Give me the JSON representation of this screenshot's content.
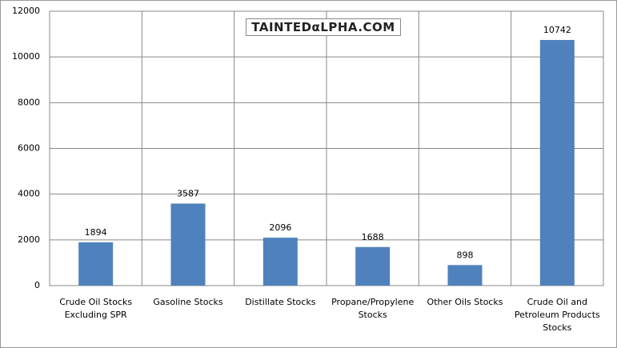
{
  "chart_data": {
    "type": "bar",
    "watermark": "TAINTEDαLPHA.COM",
    "categories": [
      "Crude Oil Stocks\nExcluding SPR",
      "Gasoline Stocks",
      "Distillate  Stocks",
      "Propane/Propylene\nStocks",
      "Other Oils Stocks",
      "Crude Oil and\nPetroleum Products\nStocks"
    ],
    "values": [
      1894,
      3587,
      2096,
      1688,
      898,
      10742
    ],
    "color": "#4f81bd",
    "ylim": [
      0,
      12000
    ],
    "yticks": [
      0,
      2000,
      4000,
      6000,
      8000,
      10000,
      12000
    ],
    "grid": true
  }
}
